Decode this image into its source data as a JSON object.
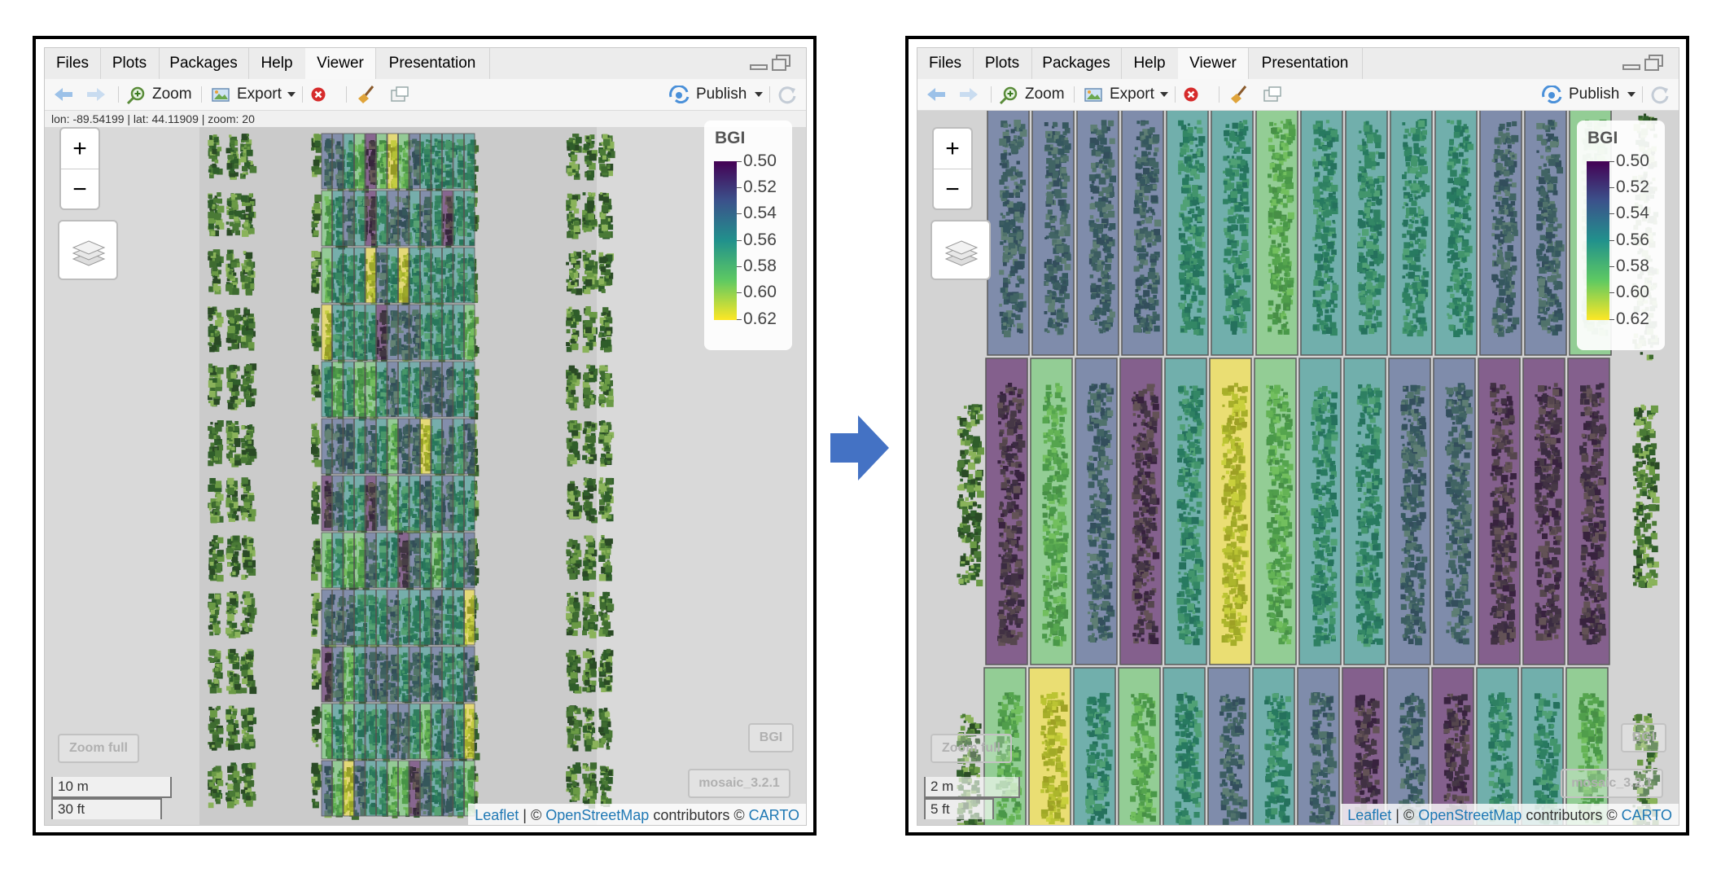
{
  "tabs": [
    "Files",
    "Plots",
    "Packages",
    "Help",
    "Viewer",
    "Presentation"
  ],
  "active_tab": "Viewer",
  "toolbar": {
    "zoom_label": "Zoom",
    "export_label": "Export",
    "publish_label": "Publish"
  },
  "left_map": {
    "coords_readout": "lon: -89.54199 | lat: 44.11909 | zoom: 20",
    "scale_metric": "10 m",
    "scale_imperial": "30 ft"
  },
  "right_map": {
    "scale_metric": "2 m",
    "scale_imperial": "5 ft"
  },
  "zoom_in": "+",
  "zoom_out": "−",
  "zoom_full_label": "Zoom full",
  "layer_label": "BGI",
  "mosaic_label": "mosaic_3.2.1",
  "legend": {
    "title": "BGI",
    "labels": [
      "0.50",
      "0.52",
      "0.54",
      "0.56",
      "0.58",
      "0.60",
      "0.62"
    ],
    "colors": [
      "#440154",
      "#3b528b",
      "#21918c",
      "#5ec962",
      "#fde725"
    ]
  },
  "attribution": {
    "leaflet": "Leaflet",
    "sep": " | © ",
    "osm": "OpenStreetMap",
    "contrib": " contributors © ",
    "carto": "CARTO"
  },
  "icons": {
    "back": "arrow-left-icon",
    "forward": "arrow-right-icon",
    "zoom": "magnifier-plus-icon",
    "export": "export-image-icon",
    "clear": "clear-x-icon",
    "broom": "broom-icon",
    "popout": "popout-window-icon",
    "publish": "publish-icon",
    "refresh": "refresh-icon",
    "layers": "layers-icon",
    "transition": "right-arrow-icon"
  }
}
